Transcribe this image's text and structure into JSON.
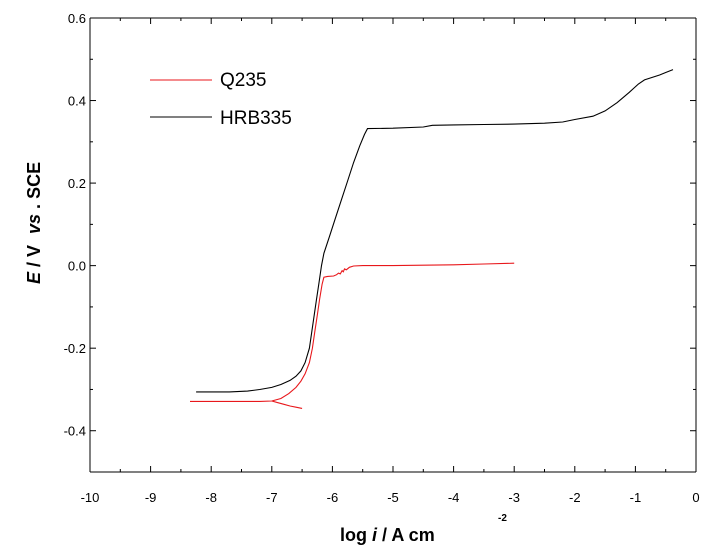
{
  "chart_data": {
    "type": "line",
    "xlabel": {
      "prefix": "log ",
      "italic": "i",
      "suffix": " / A cm",
      "superscript": "-2"
    },
    "ylabel": {
      "italic_e": "E",
      "unit": " / V ",
      "italic_vs": "vs",
      "reference": ". SCE"
    },
    "xlim": [
      -10,
      0
    ],
    "ylim": [
      -0.5,
      0.6
    ],
    "xticks": [
      -10,
      -9,
      -8,
      -7,
      -6,
      -5,
      -4,
      -3,
      -2,
      -1,
      0
    ],
    "xtick_labels": [
      "-10",
      "-9",
      "-8",
      "-7",
      "-6",
      "-5",
      "-4",
      "-3",
      "-2",
      "-1",
      "0"
    ],
    "yticks": [
      -0.4,
      -0.2,
      0.0,
      0.2,
      0.4,
      0.6
    ],
    "ytick_labels": [
      "-0.4",
      "-0.2",
      "0.0",
      "0.2",
      "0.4",
      "0.6"
    ],
    "grid": false,
    "legend_position": "top-left",
    "series": [
      {
        "name": "Q235",
        "color": "#e8171b",
        "points": [
          [
            -8.35,
            -0.329
          ],
          [
            -8.0,
            -0.329
          ],
          [
            -7.5,
            -0.329
          ],
          [
            -7.2,
            -0.329
          ],
          [
            -7.0,
            -0.328
          ],
          [
            -6.85,
            -0.322
          ],
          [
            -6.72,
            -0.31
          ],
          [
            -6.6,
            -0.295
          ],
          [
            -6.52,
            -0.28
          ],
          [
            -6.45,
            -0.262
          ],
          [
            -6.38,
            -0.235
          ],
          [
            -6.33,
            -0.2
          ],
          [
            -6.29,
            -0.16
          ],
          [
            -6.25,
            -0.12
          ],
          [
            -6.21,
            -0.08
          ],
          [
            -6.17,
            -0.045
          ],
          [
            -6.14,
            -0.028
          ],
          [
            -6.08,
            -0.026
          ],
          [
            -5.98,
            -0.025
          ],
          [
            -5.93,
            -0.022
          ],
          [
            -5.9,
            -0.018
          ],
          [
            -5.87,
            -0.02
          ],
          [
            -5.84,
            -0.012
          ],
          [
            -5.82,
            -0.015
          ],
          [
            -5.8,
            -0.008
          ],
          [
            -5.77,
            -0.01
          ],
          [
            -5.72,
            -0.004
          ],
          [
            -5.65,
            -0.001
          ],
          [
            -5.5,
            0.0
          ],
          [
            -5.0,
            0.0
          ],
          [
            -4.5,
            0.001
          ],
          [
            -4.0,
            0.002
          ],
          [
            -3.5,
            0.004
          ],
          [
            -3.0,
            0.006
          ]
        ],
        "branch": [
          [
            -7.0,
            -0.328
          ],
          [
            -6.9,
            -0.332
          ],
          [
            -6.8,
            -0.336
          ],
          [
            -6.7,
            -0.34
          ],
          [
            -6.6,
            -0.343
          ],
          [
            -6.5,
            -0.346
          ]
        ]
      },
      {
        "name": "HRB335",
        "color": "#000000",
        "points": [
          [
            -8.25,
            -0.306
          ],
          [
            -8.0,
            -0.306
          ],
          [
            -7.7,
            -0.306
          ],
          [
            -7.4,
            -0.304
          ],
          [
            -7.2,
            -0.3
          ],
          [
            -7.0,
            -0.295
          ],
          [
            -6.85,
            -0.288
          ],
          [
            -6.7,
            -0.278
          ],
          [
            -6.6,
            -0.268
          ],
          [
            -6.52,
            -0.255
          ],
          [
            -6.45,
            -0.235
          ],
          [
            -6.38,
            -0.2
          ],
          [
            -6.34,
            -0.16
          ],
          [
            -6.3,
            -0.12
          ],
          [
            -6.26,
            -0.08
          ],
          [
            -6.22,
            -0.04
          ],
          [
            -6.18,
            -0.0
          ],
          [
            -6.14,
            0.03
          ],
          [
            -6.05,
            0.07
          ],
          [
            -5.95,
            0.115
          ],
          [
            -5.85,
            0.16
          ],
          [
            -5.75,
            0.205
          ],
          [
            -5.65,
            0.25
          ],
          [
            -5.55,
            0.29
          ],
          [
            -5.47,
            0.318
          ],
          [
            -5.42,
            0.332
          ],
          [
            -5.0,
            0.333
          ],
          [
            -4.5,
            0.336
          ],
          [
            -4.35,
            0.34
          ],
          [
            -4.0,
            0.341
          ],
          [
            -3.5,
            0.342
          ],
          [
            -3.0,
            0.343
          ],
          [
            -2.5,
            0.345
          ],
          [
            -2.2,
            0.348
          ],
          [
            -2.0,
            0.354
          ],
          [
            -1.7,
            0.362
          ],
          [
            -1.5,
            0.375
          ],
          [
            -1.3,
            0.395
          ],
          [
            -1.1,
            0.42
          ],
          [
            -0.95,
            0.44
          ],
          [
            -0.85,
            0.45
          ],
          [
            -0.6,
            0.462
          ],
          [
            -0.5,
            0.468
          ],
          [
            -0.38,
            0.475
          ]
        ]
      }
    ]
  }
}
